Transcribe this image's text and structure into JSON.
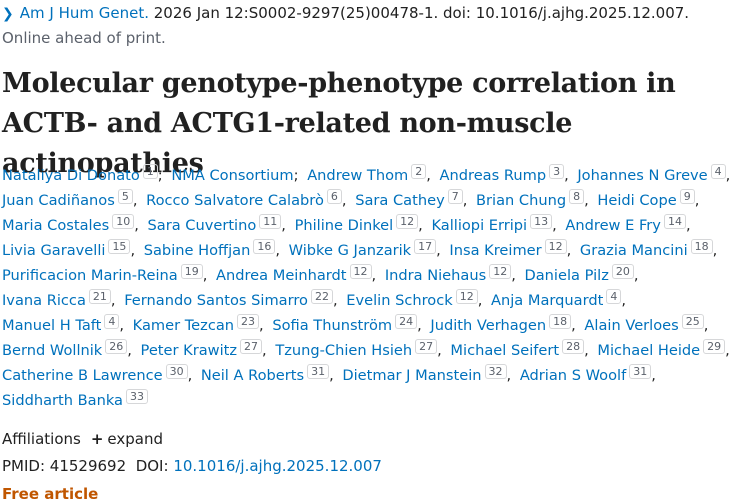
{
  "citation": {
    "journal": "Am J Hum Genet.",
    "details": "2026 Jan 12:S0002-9297(25)00478-1. doi: 10.1016/j.ajhg.2025.12.007."
  },
  "status": "Online ahead of print.",
  "title": "Molecular genotype-phenotype correlation in ACTB- and ACTG1-related non-muscle actinopathies",
  "authors": [
    {
      "name": "Nataliya Di Donato",
      "aff": 1,
      "sep": ";"
    },
    {
      "name": "NMA Consortium",
      "sep": ";"
    },
    {
      "name": "Andrew Thom",
      "aff": 2,
      "sep": ","
    },
    {
      "name": "Andreas Rump",
      "aff": 3,
      "sep": ","
    },
    {
      "name": "Johannes N Greve",
      "aff": 4,
      "sep": ","
    },
    {
      "name": "Juan Cadiñanos",
      "aff": 5,
      "sep": ","
    },
    {
      "name": "Rocco Salvatore Calabrò",
      "aff": 6,
      "sep": ","
    },
    {
      "name": "Sara Cathey",
      "aff": 7,
      "sep": ","
    },
    {
      "name": "Brian Chung",
      "aff": 8,
      "sep": ","
    },
    {
      "name": "Heidi Cope",
      "aff": 9,
      "sep": ","
    },
    {
      "name": "Maria Costales",
      "aff": 10,
      "sep": ","
    },
    {
      "name": "Sara Cuvertino",
      "aff": 11,
      "sep": ","
    },
    {
      "name": "Philine Dinkel",
      "aff": 12,
      "sep": ","
    },
    {
      "name": "Kalliopi Erripi",
      "aff": 13,
      "sep": ","
    },
    {
      "name": "Andrew E Fry",
      "aff": 14,
      "sep": ","
    },
    {
      "name": "Livia Garavelli",
      "aff": 15,
      "sep": ","
    },
    {
      "name": "Sabine Hoffjan",
      "aff": 16,
      "sep": ","
    },
    {
      "name": "Wibke G Janzarik",
      "aff": 17,
      "sep": ","
    },
    {
      "name": "Insa Kreimer",
      "aff": 12,
      "sep": ","
    },
    {
      "name": "Grazia Mancini",
      "aff": 18,
      "sep": ","
    },
    {
      "name": "Purificacion Marin-Reina",
      "aff": 19,
      "sep": ","
    },
    {
      "name": "Andrea Meinhardt",
      "aff": 12,
      "sep": ","
    },
    {
      "name": "Indra Niehaus",
      "aff": 12,
      "sep": ","
    },
    {
      "name": "Daniela Pilz",
      "aff": 20,
      "sep": ","
    },
    {
      "name": "Ivana Ricca",
      "aff": 21,
      "sep": ","
    },
    {
      "name": "Fernando Santos Simarro",
      "aff": 22,
      "sep": ","
    },
    {
      "name": "Evelin Schrock",
      "aff": 12,
      "sep": ","
    },
    {
      "name": "Anja Marquardt",
      "aff": 4,
      "sep": ","
    },
    {
      "name": "Manuel H Taft",
      "aff": 4,
      "sep": ","
    },
    {
      "name": "Kamer Tezcan",
      "aff": 23,
      "sep": ","
    },
    {
      "name": "Sofia Thunström",
      "aff": 24,
      "sep": ","
    },
    {
      "name": "Judith Verhagen",
      "aff": 18,
      "sep": ","
    },
    {
      "name": "Alain Verloes",
      "aff": 25,
      "sep": ","
    },
    {
      "name": "Bernd Wollnik",
      "aff": 26,
      "sep": ","
    },
    {
      "name": "Peter Krawitz",
      "aff": 27,
      "sep": ","
    },
    {
      "name": "Tzung-Chien Hsieh",
      "aff": 27,
      "sep": ","
    },
    {
      "name": "Michael Seifert",
      "aff": 28,
      "sep": ","
    },
    {
      "name": "Michael Heide",
      "aff": 29,
      "sep": ","
    },
    {
      "name": "Catherine B Lawrence",
      "aff": 30,
      "sep": ","
    },
    {
      "name": "Neil A Roberts",
      "aff": 31,
      "sep": ","
    },
    {
      "name": "Dietmar J Manstein",
      "aff": 32,
      "sep": ","
    },
    {
      "name": "Adrian S Woolf",
      "aff": 31,
      "sep": ","
    },
    {
      "name": "Siddharth Banka",
      "aff": 33
    }
  ],
  "affiliations": {
    "label": "Affiliations",
    "toggle": "expand"
  },
  "identifiers": {
    "pmid_label": "PMID:",
    "pmid": "41529692",
    "doi_label": "DOI:",
    "doi": "10.1016/j.ajhg.2025.12.007"
  },
  "badge": "Free article"
}
